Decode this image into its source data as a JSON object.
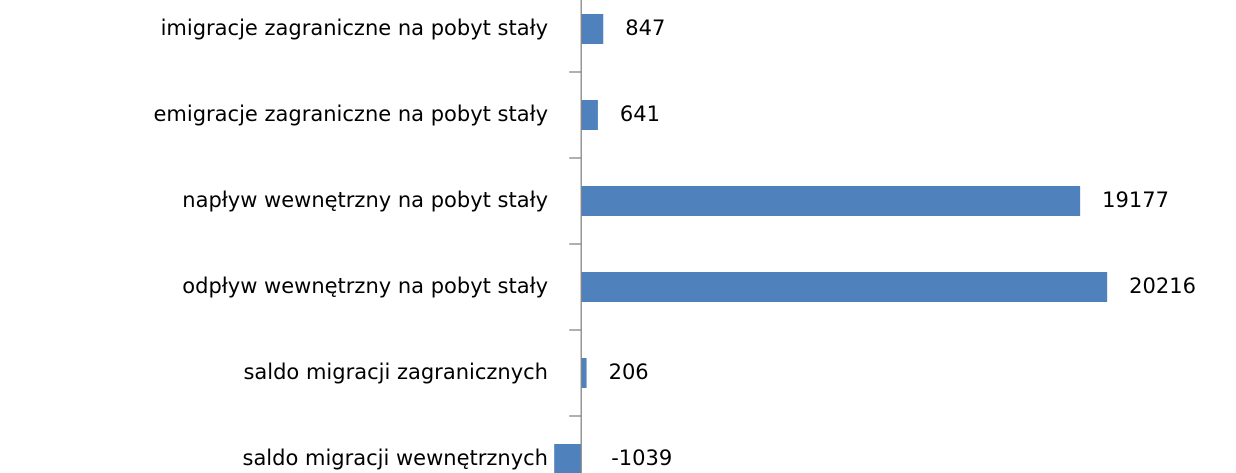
{
  "chart_data": {
    "type": "barh",
    "categories": [
      "imigracje zagraniczne na pobyt stały",
      "emigracje zagraniczne na pobyt stały",
      "napływ wewnętrzny na pobyt stały",
      "odpływ wewnętrzny na pobyt stały",
      "saldo migracji zagranicznych",
      "saldo migracji wewnętrznych"
    ],
    "values": [
      847,
      641,
      19177,
      20216,
      206,
      -1039
    ],
    "color": "#4f81bd",
    "xlim": [
      -1200,
      23400
    ]
  }
}
